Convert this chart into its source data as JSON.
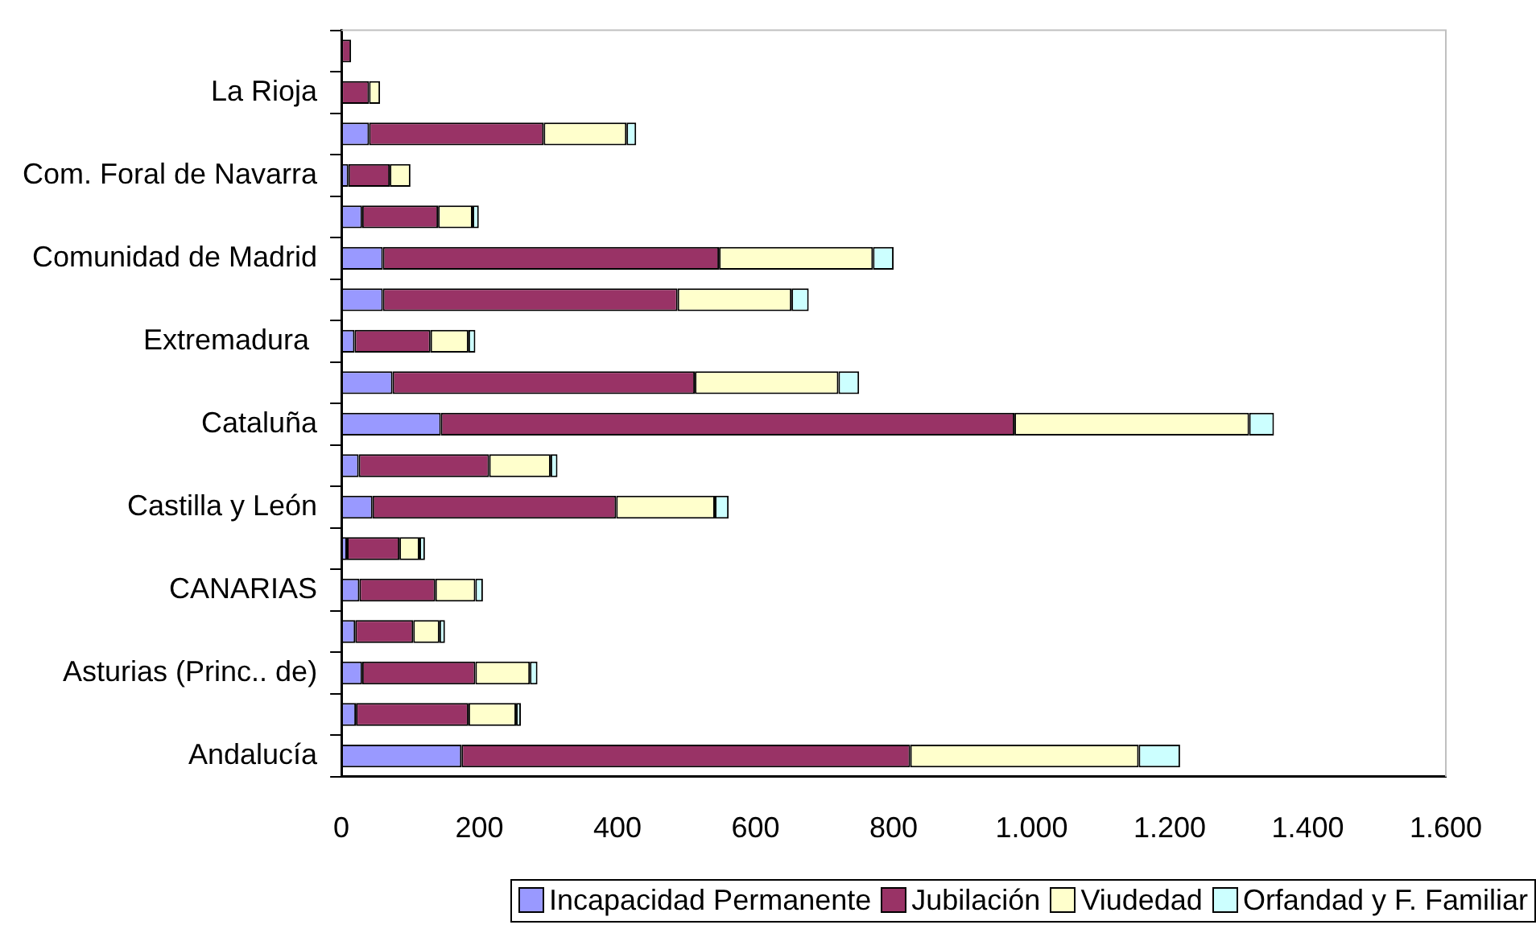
{
  "chart_data": {
    "type": "bar",
    "orientation": "horizontal",
    "stacked": true,
    "categories": [
      null,
      "La Rioja",
      null,
      "Com. Foral de Navarra",
      null,
      "Comunidad de Madrid",
      null,
      "Extremadura ",
      null,
      "Cataluña",
      null,
      "Castilla y León",
      null,
      "CANARIAS",
      null,
      "Asturias (Princ.. de)",
      null,
      "Andalucía"
    ],
    "series": [
      {
        "name": "Incapacidad Permanente",
        "color": "#9999ff",
        "values": [
          null,
          null,
          40,
          10,
          30,
          60,
          60,
          19,
          74,
          144,
          25,
          45,
          8,
          26,
          20,
          30,
          21,
          174
        ]
      },
      {
        "name": "Jubilación",
        "color": "#993366",
        "values": [
          14,
          40,
          253,
          60,
          110,
          487,
          427,
          110,
          438,
          831,
          189,
          353,
          76,
          110,
          84,
          164,
          163,
          650
        ]
      },
      {
        "name": "Viudedad",
        "color": "#ffffcc",
        "values": [
          null,
          16,
          120,
          30,
          50,
          223,
          165,
          55,
          208,
          340,
          89,
          143,
          29,
          58,
          38,
          79,
          69,
          331
        ]
      },
      {
        "name": "Orfandad y F. Familiar",
        "color": "#ccffff",
        "values": [
          null,
          null,
          14,
          null,
          9,
          30,
          25,
          10,
          30,
          36,
          10,
          20,
          8,
          11,
          8,
          11,
          7,
          60
        ]
      }
    ],
    "xlim": [
      0,
      1600
    ],
    "xticks": [
      {
        "value": 0,
        "label": "0"
      },
      {
        "value": 200,
        "label": "200"
      },
      {
        "value": 400,
        "label": "400"
      },
      {
        "value": 600,
        "label": "600"
      },
      {
        "value": 800,
        "label": "800"
      },
      {
        "value": 1000,
        "label": "1.000"
      },
      {
        "value": 1200,
        "label": "1.200"
      },
      {
        "value": 1400,
        "label": "1.400"
      },
      {
        "value": 1600,
        "label": "1.600"
      }
    ],
    "grid": false,
    "legend": "bottom right"
  }
}
